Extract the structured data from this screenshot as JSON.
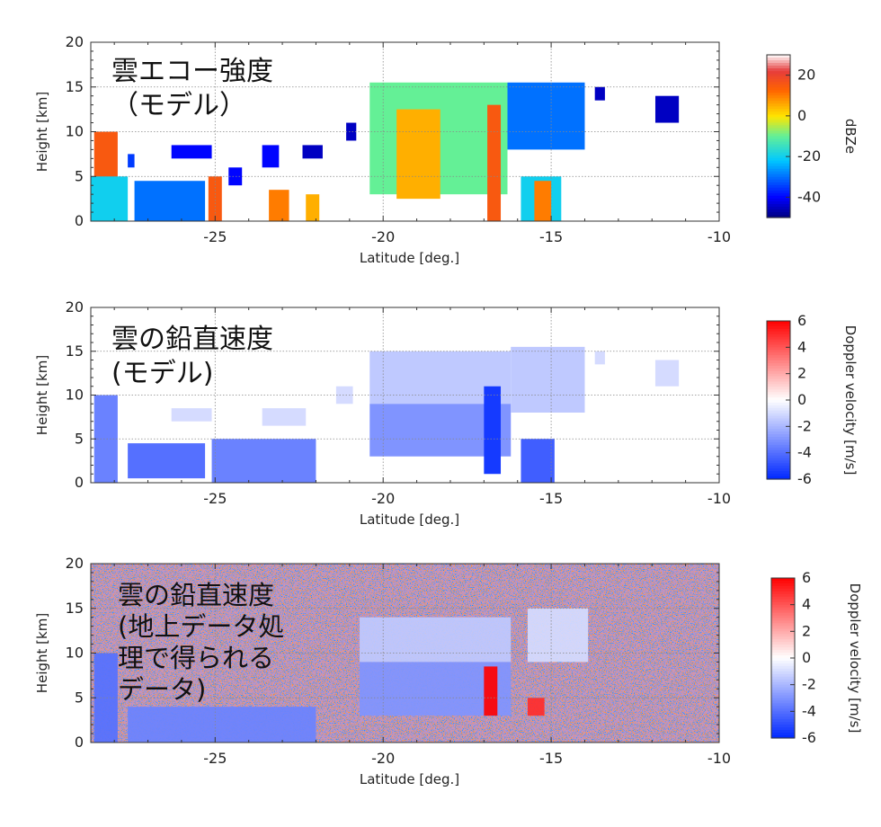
{
  "chart_data": [
    {
      "type": "heatmap",
      "title": "雲エコー強度 (モデル)",
      "title_lines": [
        "雲エコー強度",
        "（モデル）"
      ],
      "xlabel": "Latitude [deg.]",
      "ylabel": "Height [km]",
      "xlim": [
        -28.7,
        -10
      ],
      "ylim": [
        0,
        20
      ],
      "x_ticks": [
        -25,
        -20,
        -15,
        -10
      ],
      "y_ticks": [
        0,
        5,
        10,
        15,
        20
      ],
      "grid": true,
      "colorbar": {
        "label": "dBZe",
        "range": [
          -50,
          30
        ],
        "ticks": [
          20,
          0,
          -20,
          -40
        ],
        "colormap": "jet"
      },
      "regions": [
        {
          "x0": -28.6,
          "x1": -27.9,
          "y0": 0,
          "y1": 10,
          "value": 15
        },
        {
          "x0": -28.7,
          "x1": -27.6,
          "y0": 0,
          "y1": 5,
          "value": -20
        },
        {
          "x0": -27.6,
          "x1": -27.4,
          "y0": 6,
          "y1": 7.5,
          "value": -35
        },
        {
          "x0": -27.4,
          "x1": -25.3,
          "y0": 0,
          "y1": 4.5,
          "value": -30
        },
        {
          "x0": -26.3,
          "x1": -25.1,
          "y0": 7,
          "y1": 8.5,
          "value": -40
        },
        {
          "x0": -25.2,
          "x1": -24.8,
          "y0": 0,
          "y1": 5,
          "value": 15
        },
        {
          "x0": -24.6,
          "x1": -24.2,
          "y0": 4,
          "y1": 6,
          "value": -40
        },
        {
          "x0": -23.6,
          "x1": -23.1,
          "y0": 6,
          "y1": 8.5,
          "value": -40
        },
        {
          "x0": -23.4,
          "x1": -22.8,
          "y0": 0,
          "y1": 3.5,
          "value": 10
        },
        {
          "x0": -22.3,
          "x1": -21.9,
          "y0": 0,
          "y1": 3,
          "value": 5
        },
        {
          "x0": -22.4,
          "x1": -21.8,
          "y0": 7,
          "y1": 8.5,
          "value": -45
        },
        {
          "x0": -21.1,
          "x1": -20.8,
          "y0": 9,
          "y1": 11,
          "value": -45
        },
        {
          "x0": -20.4,
          "x1": -16.3,
          "y0": 3,
          "y1": 15.5,
          "value": -10
        },
        {
          "x0": -19.6,
          "x1": -18.3,
          "y0": 2.5,
          "y1": 12.5,
          "value": 5
        },
        {
          "x0": -16.9,
          "x1": -16.5,
          "y0": 0,
          "y1": 13,
          "value": 15
        },
        {
          "x0": -16.3,
          "x1": -14.0,
          "y0": 8,
          "y1": 15.5,
          "value": -30
        },
        {
          "x0": -15.9,
          "x1": -14.7,
          "y0": 0,
          "y1": 5,
          "value": -20
        },
        {
          "x0": -15.5,
          "x1": -15.0,
          "y0": 0,
          "y1": 4.5,
          "value": 10
        },
        {
          "x0": -13.7,
          "x1": -13.4,
          "y0": 13.5,
          "y1": 15,
          "value": -45
        },
        {
          "x0": -11.9,
          "x1": -11.2,
          "y0": 11,
          "y1": 14,
          "value": -45
        }
      ]
    },
    {
      "type": "heatmap",
      "title": "雲の鉛直速度 (モデル)",
      "title_lines": [
        "雲の鉛直速度",
        "(モデル)"
      ],
      "xlabel": "Latitude [deg.]",
      "ylabel": "Height [km]",
      "xlim": [
        -28.7,
        -10
      ],
      "ylim": [
        0,
        20
      ],
      "x_ticks": [
        -25,
        -20,
        -15,
        -10
      ],
      "y_ticks": [
        0,
        5,
        10,
        15,
        20
      ],
      "grid": true,
      "colorbar": {
        "label": "Doppler velocity [m/s]",
        "range": [
          -6,
          6
        ],
        "ticks": [
          6,
          4,
          2,
          0,
          -2,
          -4,
          -6
        ],
        "colormap": "blue-white-red"
      },
      "regions": [
        {
          "x0": -28.6,
          "x1": -27.9,
          "y0": 0,
          "y1": 10,
          "value": -3.5
        },
        {
          "x0": -27.6,
          "x1": -25.3,
          "y0": 0.5,
          "y1": 4.5,
          "value": -4
        },
        {
          "x0": -26.3,
          "x1": -25.1,
          "y0": 7,
          "y1": 8.5,
          "value": -1
        },
        {
          "x0": -25.1,
          "x1": -22.0,
          "y0": 0,
          "y1": 5,
          "value": -3.5
        },
        {
          "x0": -23.6,
          "x1": -22.3,
          "y0": 6.5,
          "y1": 8.5,
          "value": -1
        },
        {
          "x0": -21.4,
          "x1": -20.9,
          "y0": 9,
          "y1": 11,
          "value": -1
        },
        {
          "x0": -20.4,
          "x1": -16.2,
          "y0": 9,
          "y1": 15,
          "value": -1.5
        },
        {
          "x0": -20.4,
          "x1": -16.2,
          "y0": 3,
          "y1": 9,
          "value": -3
        },
        {
          "x0": -17.0,
          "x1": -16.5,
          "y0": 1,
          "y1": 11,
          "value": -5.5
        },
        {
          "x0": -16.2,
          "x1": -14.0,
          "y0": 8,
          "y1": 15.5,
          "value": -1.5
        },
        {
          "x0": -15.9,
          "x1": -14.9,
          "y0": 0,
          "y1": 5,
          "value": -4.5
        },
        {
          "x0": -13.7,
          "x1": -13.4,
          "y0": 13.5,
          "y1": 15,
          "value": -1
        },
        {
          "x0": -11.9,
          "x1": -11.2,
          "y0": 11,
          "y1": 14,
          "value": -1
        }
      ]
    },
    {
      "type": "heatmap",
      "title": "雲の鉛直速度 (地上データ処理で得られるデータ)",
      "title_lines": [
        "雲の鉛直速度",
        "(地上データ処",
        "理で得られる",
        "データ)"
      ],
      "xlabel": "Latitude [deg.]",
      "ylabel": "Height [km]",
      "xlim": [
        -28.7,
        -10
      ],
      "ylim": [
        0,
        20
      ],
      "x_ticks": [
        -25,
        -20,
        -15,
        -10
      ],
      "y_ticks": [
        0,
        5,
        10,
        15,
        20
      ],
      "grid": true,
      "noise_background": true,
      "colorbar": {
        "label": "Doppler velocity [m/s]",
        "range": [
          -6,
          6
        ],
        "ticks": [
          6,
          4,
          2,
          0,
          -2,
          -4,
          -6
        ],
        "colormap": "blue-white-red"
      },
      "regions": [
        {
          "x0": -28.6,
          "x1": -27.9,
          "y0": 0,
          "y1": 10,
          "value": -4
        },
        {
          "x0": -27.6,
          "x1": -22.0,
          "y0": 0,
          "y1": 4,
          "value": -3.5
        },
        {
          "x0": -20.7,
          "x1": -16.2,
          "y0": 9,
          "y1": 14,
          "value": -1.5
        },
        {
          "x0": -20.7,
          "x1": -16.2,
          "y0": 3,
          "y1": 9,
          "value": -3
        },
        {
          "x0": -17.0,
          "x1": -16.6,
          "y0": 3,
          "y1": 8.5,
          "value": 6
        },
        {
          "x0": -15.7,
          "x1": -13.9,
          "y0": 9,
          "y1": 15,
          "value": -1
        },
        {
          "x0": -15.7,
          "x1": -15.2,
          "y0": 3,
          "y1": 5,
          "value": 5
        }
      ]
    }
  ]
}
